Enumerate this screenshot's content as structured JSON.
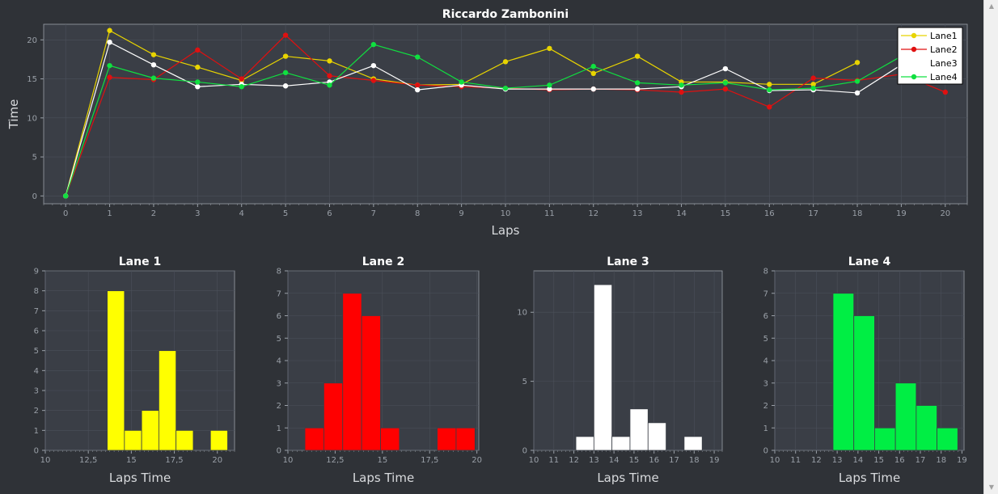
{
  "chart_data": [
    {
      "type": "line",
      "title": "Riccardo Zambonini",
      "xlabel": "Laps",
      "ylabel": "Time",
      "xlim": [
        -0.5,
        20.5
      ],
      "ylim": [
        -1,
        22
      ],
      "xticks": [
        0,
        1,
        2,
        3,
        4,
        5,
        6,
        7,
        8,
        9,
        10,
        11,
        12,
        13,
        14,
        15,
        16,
        17,
        18,
        19,
        20
      ],
      "yticks": [
        0,
        5,
        10,
        15,
        20
      ],
      "grid": true,
      "legend": "top-right",
      "series": [
        {
          "name": "Lane1",
          "color": "#e8d400",
          "x": [
            0,
            1,
            2,
            3,
            4,
            5,
            6,
            7,
            8,
            9,
            10,
            11,
            12,
            13,
            14,
            15,
            16,
            17,
            18
          ],
          "y": [
            0,
            21.2,
            18.1,
            16.5,
            14.8,
            17.9,
            17.3,
            15.0,
            14.2,
            14.3,
            17.2,
            18.9,
            15.7,
            17.9,
            14.6,
            14.6,
            14.3,
            14.3,
            17.1
          ]
        },
        {
          "name": "Lane2",
          "color": "#e01010",
          "x": [
            0,
            1,
            2,
            3,
            4,
            5,
            6,
            7,
            8,
            9,
            10,
            11,
            12,
            13,
            14,
            15,
            16,
            17,
            18,
            19,
            20
          ],
          "y": [
            0,
            15.2,
            14.9,
            18.7,
            15.0,
            20.6,
            15.4,
            14.8,
            14.2,
            14.0,
            13.8,
            13.6,
            13.7,
            13.6,
            13.3,
            13.7,
            11.4,
            15.1,
            14.8,
            15.6,
            13.3
          ]
        },
        {
          "name": "Lane3",
          "color": "#ffffff",
          "x": [
            0,
            1,
            2,
            3,
            4,
            5,
            6,
            7,
            8,
            9,
            10,
            11,
            12,
            13,
            14,
            15,
            16,
            17,
            18,
            19
          ],
          "y": [
            0,
            19.7,
            16.8,
            14.0,
            14.3,
            14.1,
            14.6,
            16.7,
            13.6,
            14.2,
            13.7,
            13.7,
            13.7,
            13.7,
            14.0,
            16.3,
            13.5,
            13.6,
            13.2,
            16.8
          ]
        },
        {
          "name": "Lane4",
          "color": "#10e040",
          "x": [
            0,
            1,
            2,
            3,
            4,
            5,
            6,
            7,
            8,
            9,
            10,
            11,
            12,
            13,
            14,
            15,
            16,
            17,
            18,
            19
          ],
          "y": [
            0,
            16.7,
            15.1,
            14.6,
            14.0,
            15.8,
            14.2,
            19.4,
            17.8,
            14.6,
            13.8,
            14.2,
            16.6,
            14.5,
            14.2,
            14.5,
            13.6,
            13.8,
            14.7,
            17.9
          ]
        }
      ]
    },
    {
      "type": "bar",
      "title": "Lane 1",
      "xlabel": "Laps Time",
      "ylabel": "",
      "color": "#ffff00",
      "xlim": [
        10,
        21
      ],
      "ylim": [
        0,
        9
      ],
      "xticks": [
        "10",
        "12,5",
        "15",
        "17,5",
        "20"
      ],
      "xtick_values": [
        10,
        12.5,
        15,
        17.5,
        20
      ],
      "yticks": [
        0,
        1,
        2,
        3,
        4,
        5,
        6,
        7,
        8,
        9
      ],
      "bins": [
        [
          13.6,
          14.6,
          8
        ],
        [
          14.6,
          15.6,
          1
        ],
        [
          15.6,
          16.6,
          2
        ],
        [
          16.6,
          17.6,
          5
        ],
        [
          17.6,
          18.6,
          1
        ],
        [
          19.6,
          20.6,
          1
        ]
      ]
    },
    {
      "type": "bar",
      "title": "Lane 2",
      "xlabel": "Laps Time",
      "ylabel": "",
      "color": "#ff0000",
      "xlim": [
        10,
        20.1
      ],
      "ylim": [
        0,
        8
      ],
      "xticks": [
        "10",
        "12,5",
        "15",
        "17,5",
        "20"
      ],
      "xtick_values": [
        10,
        12.5,
        15,
        17.5,
        20
      ],
      "yticks": [
        0,
        1,
        2,
        3,
        4,
        5,
        6,
        7,
        8
      ],
      "bins": [
        [
          10.9,
          11.9,
          1
        ],
        [
          11.9,
          12.9,
          3
        ],
        [
          12.9,
          13.9,
          7
        ],
        [
          13.9,
          14.9,
          6
        ],
        [
          14.9,
          15.9,
          1
        ],
        [
          17.9,
          18.9,
          1
        ],
        [
          18.9,
          19.9,
          1
        ]
      ]
    },
    {
      "type": "bar",
      "title": "Lane 3",
      "xlabel": "Laps Time",
      "ylabel": "",
      "color": "#ffffff",
      "xlim": [
        10,
        19.4
      ],
      "ylim": [
        0,
        13
      ],
      "xticks": [
        "10",
        "11",
        "12",
        "13",
        "14",
        "15",
        "16",
        "17",
        "18",
        "19"
      ],
      "xtick_values": [
        10,
        11,
        12,
        13,
        14,
        15,
        16,
        17,
        18,
        19
      ],
      "yticks": [
        0,
        5,
        10
      ],
      "bins": [
        [
          12.1,
          13.0,
          1
        ],
        [
          13.0,
          13.9,
          12
        ],
        [
          13.9,
          14.8,
          1
        ],
        [
          14.8,
          15.7,
          3
        ],
        [
          15.7,
          16.6,
          2
        ],
        [
          17.5,
          18.4,
          1
        ]
      ]
    },
    {
      "type": "bar",
      "title": "Lane 4",
      "xlabel": "Laps Time",
      "ylabel": "",
      "color": "#00ee44",
      "xlim": [
        10,
        19.1
      ],
      "ylim": [
        0,
        8
      ],
      "xticks": [
        "10",
        "11",
        "12",
        "13",
        "14",
        "15",
        "16",
        "17",
        "18",
        "19"
      ],
      "xtick_values": [
        10,
        11,
        12,
        13,
        14,
        15,
        16,
        17,
        18,
        19
      ],
      "yticks": [
        0,
        1,
        2,
        3,
        4,
        5,
        6,
        7,
        8
      ],
      "bins": [
        [
          12.8,
          13.8,
          7
        ],
        [
          13.8,
          14.8,
          6
        ],
        [
          14.8,
          15.8,
          1
        ],
        [
          15.8,
          16.8,
          3
        ],
        [
          16.8,
          17.8,
          2
        ],
        [
          17.8,
          18.8,
          1
        ]
      ]
    }
  ],
  "theme": {
    "background": "#2f3237",
    "plot_area": "#3a3e46",
    "grid": "#4b505a",
    "axis": "#9aa0a8",
    "tick_text": "#9aa0a8",
    "label_text": "#d8dadd",
    "title_text": "#ffffff"
  },
  "scrollbar": {
    "up_icon": "chevron-up-icon",
    "down_icon": "chevron-down-icon"
  }
}
